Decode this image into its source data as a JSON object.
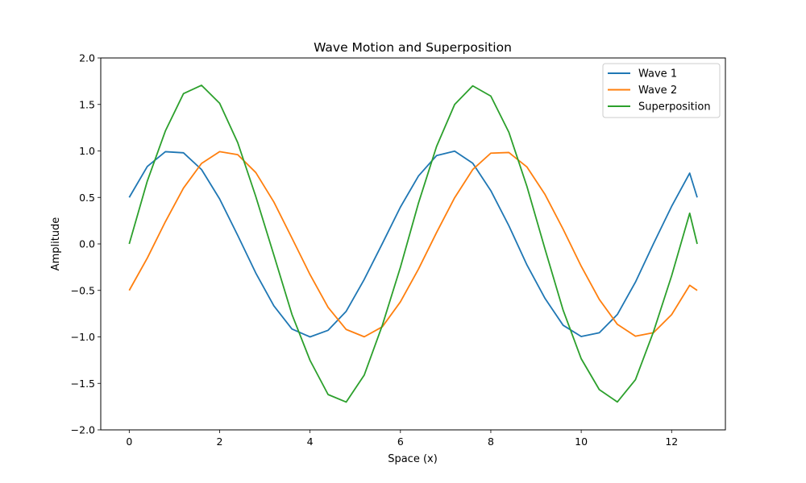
{
  "chart_data": {
    "type": "line",
    "title": "Wave Motion and Superposition",
    "xlabel": "Space (x)",
    "ylabel": "Amplitude",
    "xlim": [
      -0.63,
      13.19
    ],
    "ylim": [
      -2.0,
      2.0
    ],
    "xticks": [
      0,
      2,
      4,
      6,
      8,
      10,
      12
    ],
    "xtick_labels": [
      "0",
      "2",
      "4",
      "6",
      "8",
      "10",
      "12"
    ],
    "yticks": [
      -2.0,
      -1.5,
      -1.0,
      -0.5,
      0.0,
      0.5,
      1.0,
      1.5,
      2.0
    ],
    "ytick_labels": [
      "−2.0",
      "−1.5",
      "−1.0",
      "−0.5",
      "0.0",
      "0.5",
      "1.0",
      "1.5",
      "2.0"
    ],
    "grid": false,
    "legend_position": "top-right",
    "x": [
      0,
      0.4,
      0.8,
      1.2,
      1.6,
      2.0,
      2.4,
      2.8,
      3.2,
      3.6,
      4.0,
      4.4,
      4.8,
      5.2,
      5.6,
      6.0,
      6.4,
      6.8,
      7.2,
      7.6,
      8.0,
      8.4,
      8.8,
      9.2,
      9.6,
      10.0,
      10.4,
      10.8,
      11.2,
      11.6,
      12.0,
      12.4,
      12.566
    ],
    "series": [
      {
        "name": "Wave 1",
        "color": "#1f77b4",
        "values": [
          0.5,
          0.833,
          0.992,
          0.98,
          0.8,
          0.484,
          0.092,
          -0.313,
          -0.666,
          -0.915,
          -1.0,
          -0.929,
          -0.725,
          -0.381,
          0.004,
          0.396,
          0.731,
          0.95,
          0.998,
          0.868,
          0.573,
          0.195,
          -0.227,
          -0.587,
          -0.875,
          -0.996,
          -0.956,
          -0.759,
          -0.411,
          0.003,
          0.404,
          0.761,
          0.5
        ]
      },
      {
        "name": "Wave 2",
        "color": "#ff7f0e",
        "values": [
          -0.5,
          -0.152,
          0.239,
          0.6,
          0.866,
          0.992,
          0.96,
          0.768,
          0.451,
          0.063,
          -0.33,
          -0.682,
          -0.92,
          -0.999,
          -0.891,
          -0.623,
          -0.27,
          0.123,
          0.497,
          0.8,
          0.976,
          0.983,
          0.827,
          0.531,
          0.158,
          -0.24,
          -0.597,
          -0.865,
          -0.992,
          -0.955,
          -0.761,
          -0.445,
          -0.5
        ]
      },
      {
        "name": "Superposition",
        "color": "#2ca02c",
        "values": [
          0.0,
          0.676,
          1.215,
          1.616,
          1.706,
          1.513,
          1.09,
          0.51,
          -0.12,
          -0.758,
          -1.252,
          -1.62,
          -1.701,
          -1.41,
          -0.875,
          -0.251,
          0.44,
          1.049,
          1.5,
          1.7,
          1.59,
          1.2,
          0.617,
          -0.057,
          -0.713,
          -1.235,
          -1.567,
          -1.7,
          -1.46,
          -0.943,
          -0.343,
          0.33,
          0.0
        ]
      }
    ]
  }
}
